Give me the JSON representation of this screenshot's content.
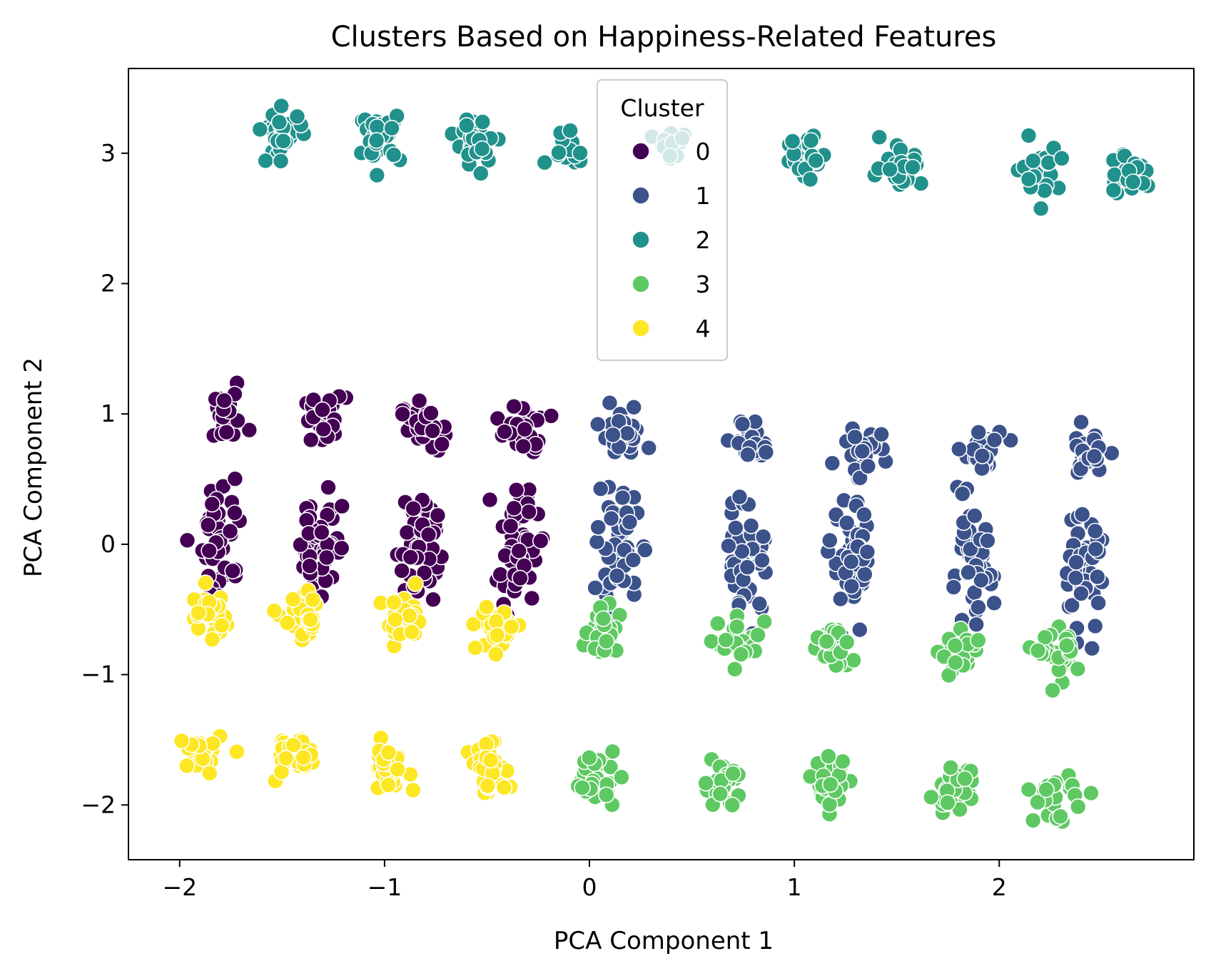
{
  "chart_data": {
    "type": "scatter",
    "title": "Clusters Based on Happiness-Related Features",
    "xlabel": "PCA Component 1",
    "ylabel": "PCA Component 2",
    "xlim": [
      -2.25,
      2.95
    ],
    "ylim": [
      -2.42,
      3.65
    ],
    "xticks": [
      -2,
      -1,
      0,
      1,
      2
    ],
    "yticks": [
      -2,
      -1,
      0,
      1,
      2,
      3
    ],
    "xtick_labels": [
      "−2",
      "−1",
      "0",
      "1",
      "2"
    ],
    "ytick_labels": [
      "−2",
      "−1",
      "0",
      "1",
      "2",
      "3"
    ],
    "grid": false,
    "legend": {
      "title": "Cluster",
      "placement": "upper center",
      "entries": [
        "0",
        "1",
        "2",
        "3",
        "4"
      ]
    },
    "series": [
      {
        "name": "0",
        "color": "#440154",
        "groups": [
          {
            "cx": -1.77,
            "cy": 0.97,
            "n": 30,
            "sx": 0.05,
            "sy": 0.09
          },
          {
            "cx": -1.29,
            "cy": 0.95,
            "n": 30,
            "sx": 0.05,
            "sy": 0.09
          },
          {
            "cx": -0.82,
            "cy": 0.91,
            "n": 30,
            "sx": 0.05,
            "sy": 0.09
          },
          {
            "cx": -0.32,
            "cy": 0.88,
            "n": 30,
            "sx": 0.05,
            "sy": 0.09
          },
          {
            "cx": -1.8,
            "cy": 0.06,
            "n": 50,
            "sx": 0.05,
            "sy": 0.22
          },
          {
            "cx": -1.31,
            "cy": 0.03,
            "n": 50,
            "sx": 0.05,
            "sy": 0.22
          },
          {
            "cx": -0.84,
            "cy": 0.0,
            "n": 50,
            "sx": 0.05,
            "sy": 0.22
          },
          {
            "cx": -0.35,
            "cy": -0.02,
            "n": 50,
            "sx": 0.05,
            "sy": 0.22
          }
        ]
      },
      {
        "name": "1",
        "color": "#3b528b",
        "groups": [
          {
            "cx": 0.16,
            "cy": 0.84,
            "n": 30,
            "sx": 0.05,
            "sy": 0.09
          },
          {
            "cx": 0.8,
            "cy": 0.79,
            "n": 30,
            "sx": 0.05,
            "sy": 0.09
          },
          {
            "cx": 1.31,
            "cy": 0.74,
            "n": 30,
            "sx": 0.05,
            "sy": 0.09
          },
          {
            "cx": 1.91,
            "cy": 0.71,
            "n": 30,
            "sx": 0.05,
            "sy": 0.09
          },
          {
            "cx": 2.42,
            "cy": 0.67,
            "n": 30,
            "sx": 0.05,
            "sy": 0.09
          },
          {
            "cx": 0.14,
            "cy": -0.06,
            "n": 50,
            "sx": 0.05,
            "sy": 0.22
          },
          {
            "cx": 0.77,
            "cy": -0.1,
            "n": 50,
            "sx": 0.05,
            "sy": 0.22
          },
          {
            "cx": 1.28,
            "cy": -0.14,
            "n": 50,
            "sx": 0.05,
            "sy": 0.22
          },
          {
            "cx": 1.87,
            "cy": -0.19,
            "n": 50,
            "sx": 0.05,
            "sy": 0.22
          },
          {
            "cx": 2.4,
            "cy": -0.23,
            "n": 50,
            "sx": 0.05,
            "sy": 0.22
          }
        ]
      },
      {
        "name": "2",
        "color": "#21918c",
        "groups": [
          {
            "cx": -1.5,
            "cy": 3.16,
            "n": 30,
            "sx": 0.05,
            "sy": 0.09
          },
          {
            "cx": -1.02,
            "cy": 3.13,
            "n": 30,
            "sx": 0.05,
            "sy": 0.09
          },
          {
            "cx": -0.55,
            "cy": 3.08,
            "n": 30,
            "sx": 0.05,
            "sy": 0.09
          },
          {
            "cx": -0.1,
            "cy": 3.07,
            "n": 14,
            "sx": 0.05,
            "sy": 0.08
          },
          {
            "cx": 0.4,
            "cy": 3.05,
            "n": 20,
            "sx": 0.05,
            "sy": 0.09
          },
          {
            "cx": 1.06,
            "cy": 2.98,
            "n": 30,
            "sx": 0.05,
            "sy": 0.09
          },
          {
            "cx": 1.52,
            "cy": 2.93,
            "n": 30,
            "sx": 0.05,
            "sy": 0.09
          },
          {
            "cx": 2.2,
            "cy": 2.88,
            "n": 24,
            "sx": 0.05,
            "sy": 0.09
          },
          {
            "cx": 2.64,
            "cy": 2.85,
            "n": 30,
            "sx": 0.05,
            "sy": 0.09
          }
        ]
      },
      {
        "name": "3",
        "color": "#5ec962",
        "groups": [
          {
            "cx": 0.08,
            "cy": -0.7,
            "n": 30,
            "sx": 0.05,
            "sy": 0.09
          },
          {
            "cx": 0.73,
            "cy": -0.75,
            "n": 30,
            "sx": 0.05,
            "sy": 0.09
          },
          {
            "cx": 1.18,
            "cy": -0.8,
            "n": 30,
            "sx": 0.05,
            "sy": 0.09
          },
          {
            "cx": 1.82,
            "cy": -0.84,
            "n": 30,
            "sx": 0.05,
            "sy": 0.09
          },
          {
            "cx": 2.3,
            "cy": -0.87,
            "n": 30,
            "sx": 0.05,
            "sy": 0.09
          },
          {
            "cx": 0.02,
            "cy": -1.78,
            "n": 30,
            "sx": 0.05,
            "sy": 0.09
          },
          {
            "cx": 0.65,
            "cy": -1.82,
            "n": 30,
            "sx": 0.05,
            "sy": 0.09
          },
          {
            "cx": 1.17,
            "cy": -1.85,
            "n": 30,
            "sx": 0.05,
            "sy": 0.09
          },
          {
            "cx": 1.78,
            "cy": -1.9,
            "n": 30,
            "sx": 0.05,
            "sy": 0.09
          },
          {
            "cx": 2.27,
            "cy": -1.94,
            "n": 30,
            "sx": 0.05,
            "sy": 0.09
          }
        ]
      },
      {
        "name": "4",
        "color": "#fde725",
        "groups": [
          {
            "cx": -1.86,
            "cy": -0.55,
            "n": 30,
            "sx": 0.05,
            "sy": 0.09
          },
          {
            "cx": -1.39,
            "cy": -0.58,
            "n": 30,
            "sx": 0.05,
            "sy": 0.09
          },
          {
            "cx": -0.91,
            "cy": -0.6,
            "n": 30,
            "sx": 0.05,
            "sy": 0.09
          },
          {
            "cx": -0.45,
            "cy": -0.64,
            "n": 30,
            "sx": 0.05,
            "sy": 0.09
          },
          {
            "cx": -1.9,
            "cy": -1.6,
            "n": 30,
            "sx": 0.05,
            "sy": 0.09
          },
          {
            "cx": -1.45,
            "cy": -1.65,
            "n": 30,
            "sx": 0.05,
            "sy": 0.09
          },
          {
            "cx": -0.98,
            "cy": -1.7,
            "n": 30,
            "sx": 0.05,
            "sy": 0.09
          },
          {
            "cx": -0.48,
            "cy": -1.73,
            "n": 30,
            "sx": 0.05,
            "sy": 0.09
          }
        ]
      }
    ]
  }
}
